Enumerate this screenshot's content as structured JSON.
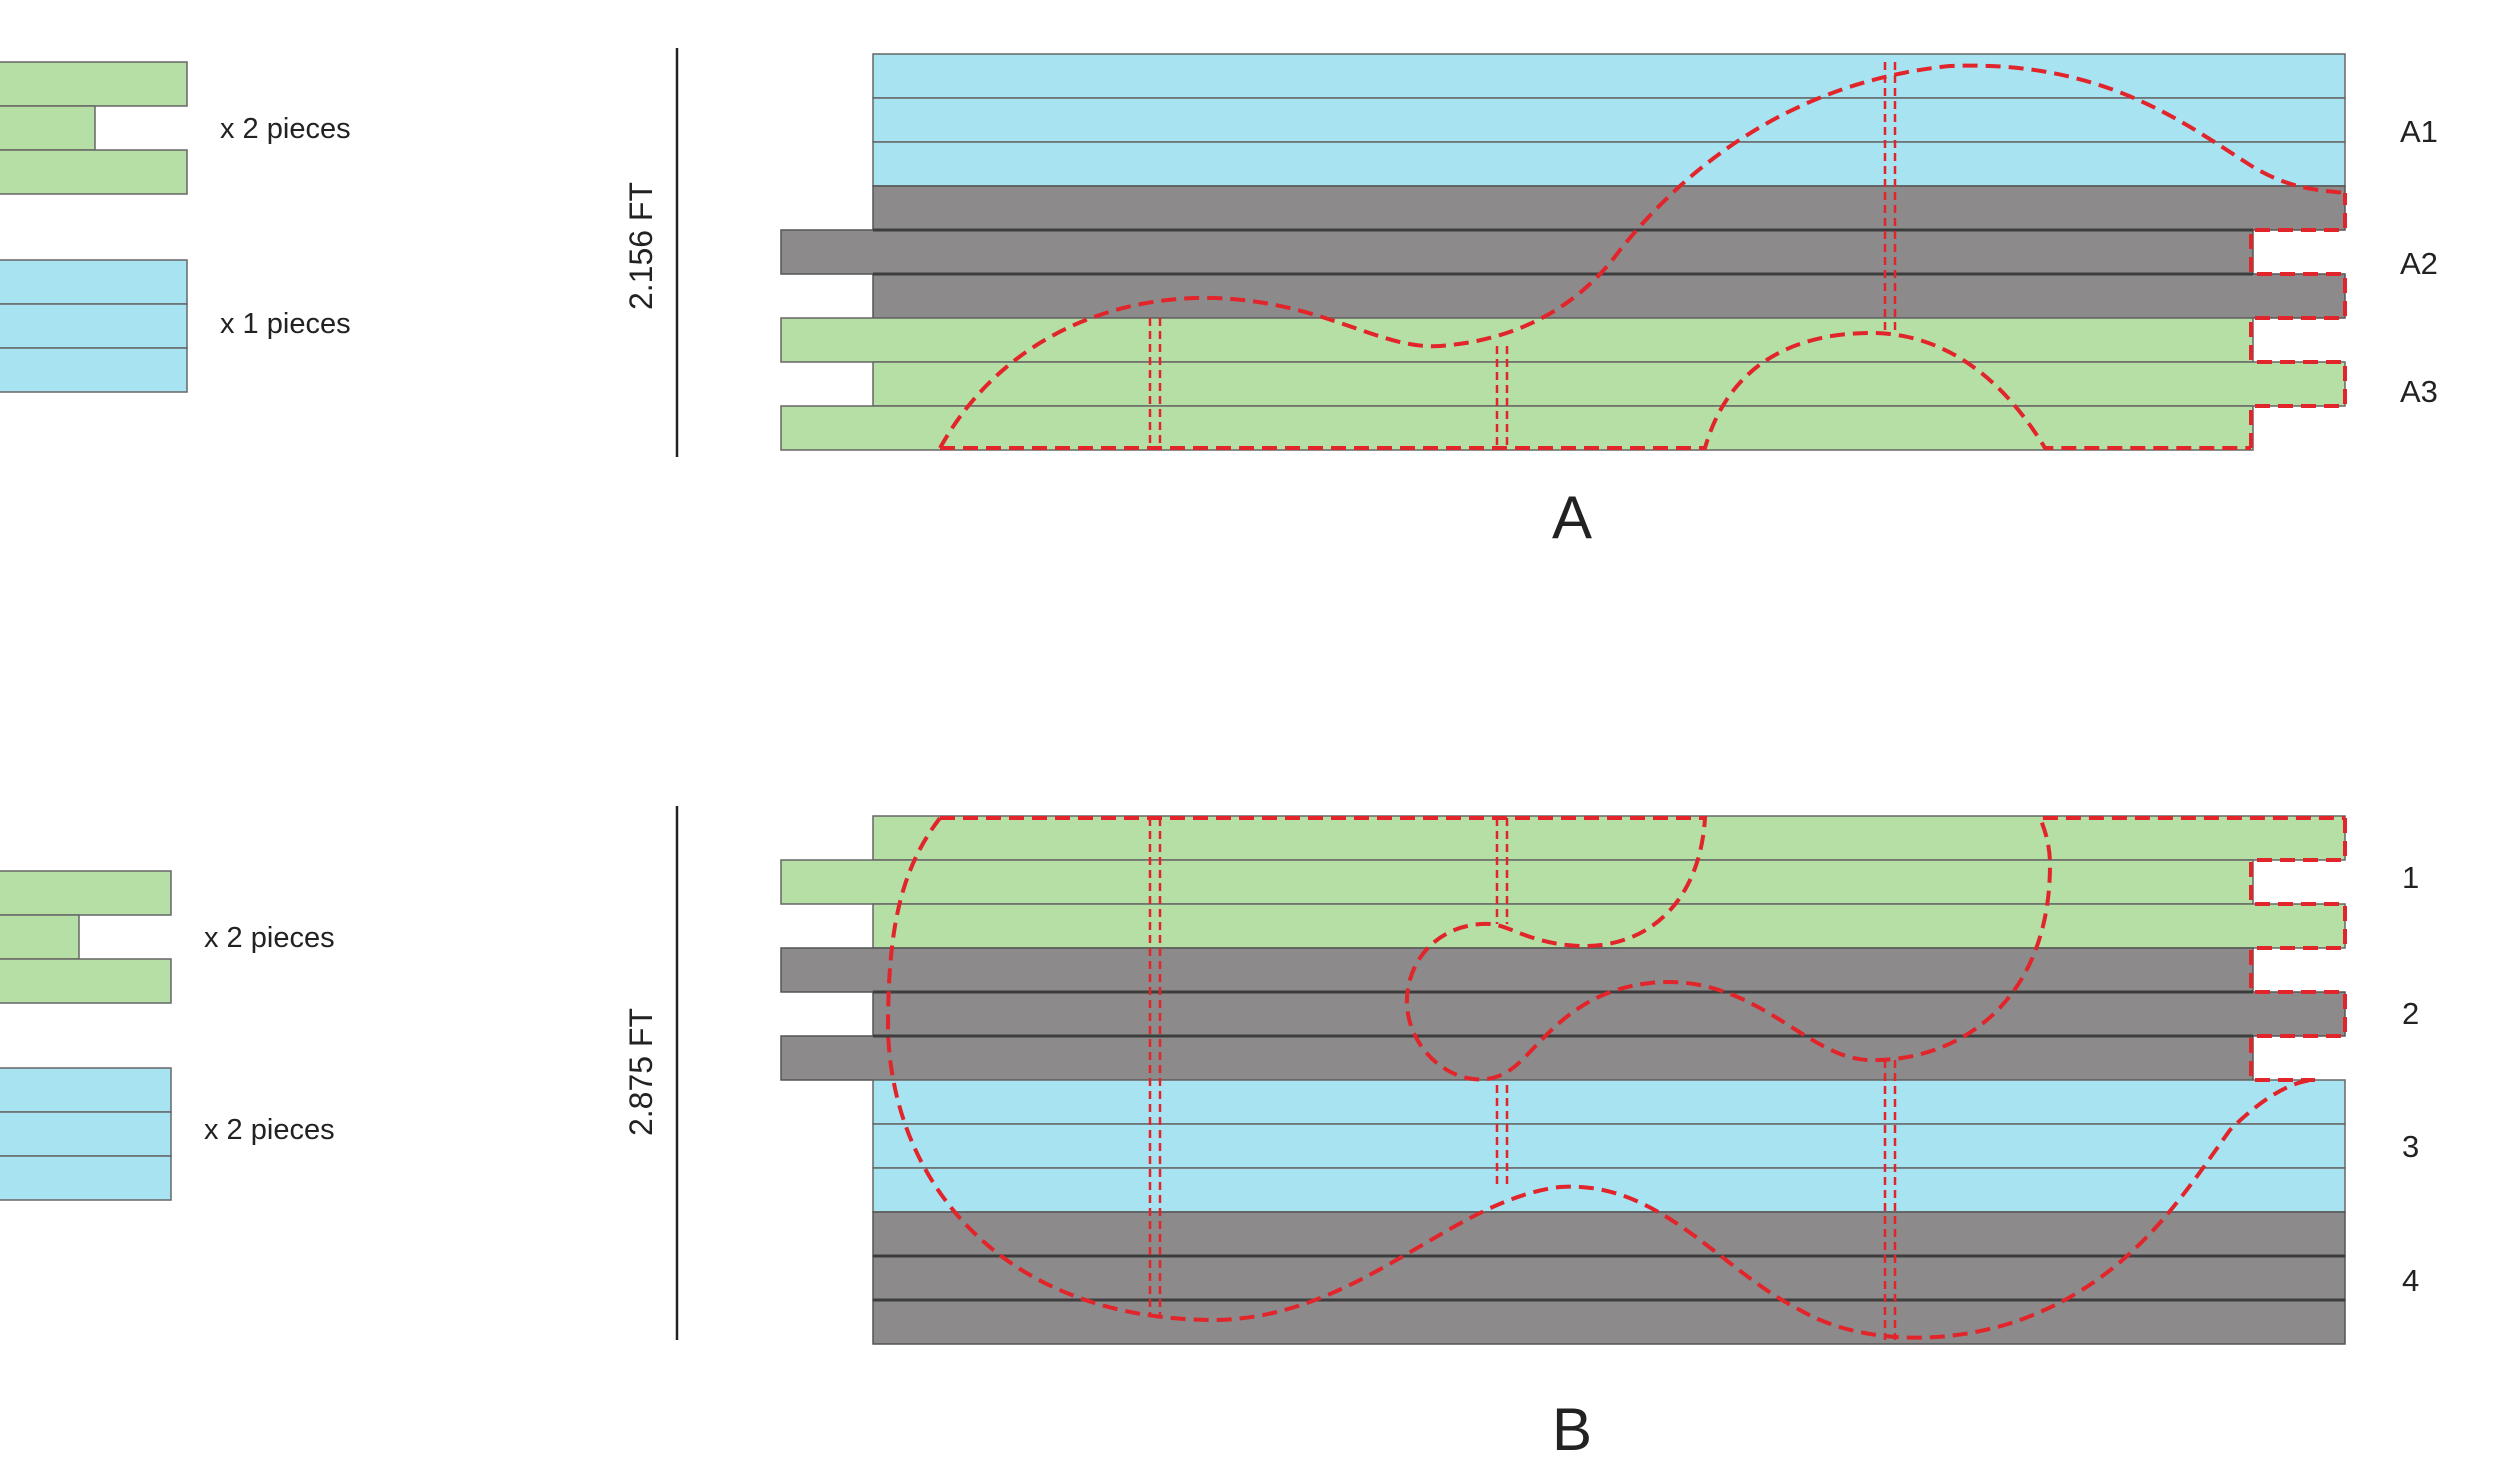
{
  "colors": {
    "green": "#b5dfa5",
    "blue": "#a8e3f2",
    "gray": "#8c8a8b",
    "outline": "#666666",
    "cut_line": "#e2242b",
    "text": "#222222"
  },
  "diagram_a": {
    "caption": "A",
    "height_label": "2.156 FT",
    "row_labels": [
      "A1",
      "A2",
      "A3"
    ],
    "pieces": [
      {
        "label": "x 2 pieces",
        "color": "green"
      },
      {
        "label": "x 1 pieces",
        "color": "blue"
      }
    ]
  },
  "diagram_b": {
    "caption": "B",
    "height_label": "2.875 FT",
    "row_labels": [
      "1",
      "2",
      "3",
      "4"
    ],
    "pieces": [
      {
        "label": "x 2 pieces",
        "color": "green"
      },
      {
        "label": "x 2 pieces",
        "color": "blue"
      }
    ]
  }
}
